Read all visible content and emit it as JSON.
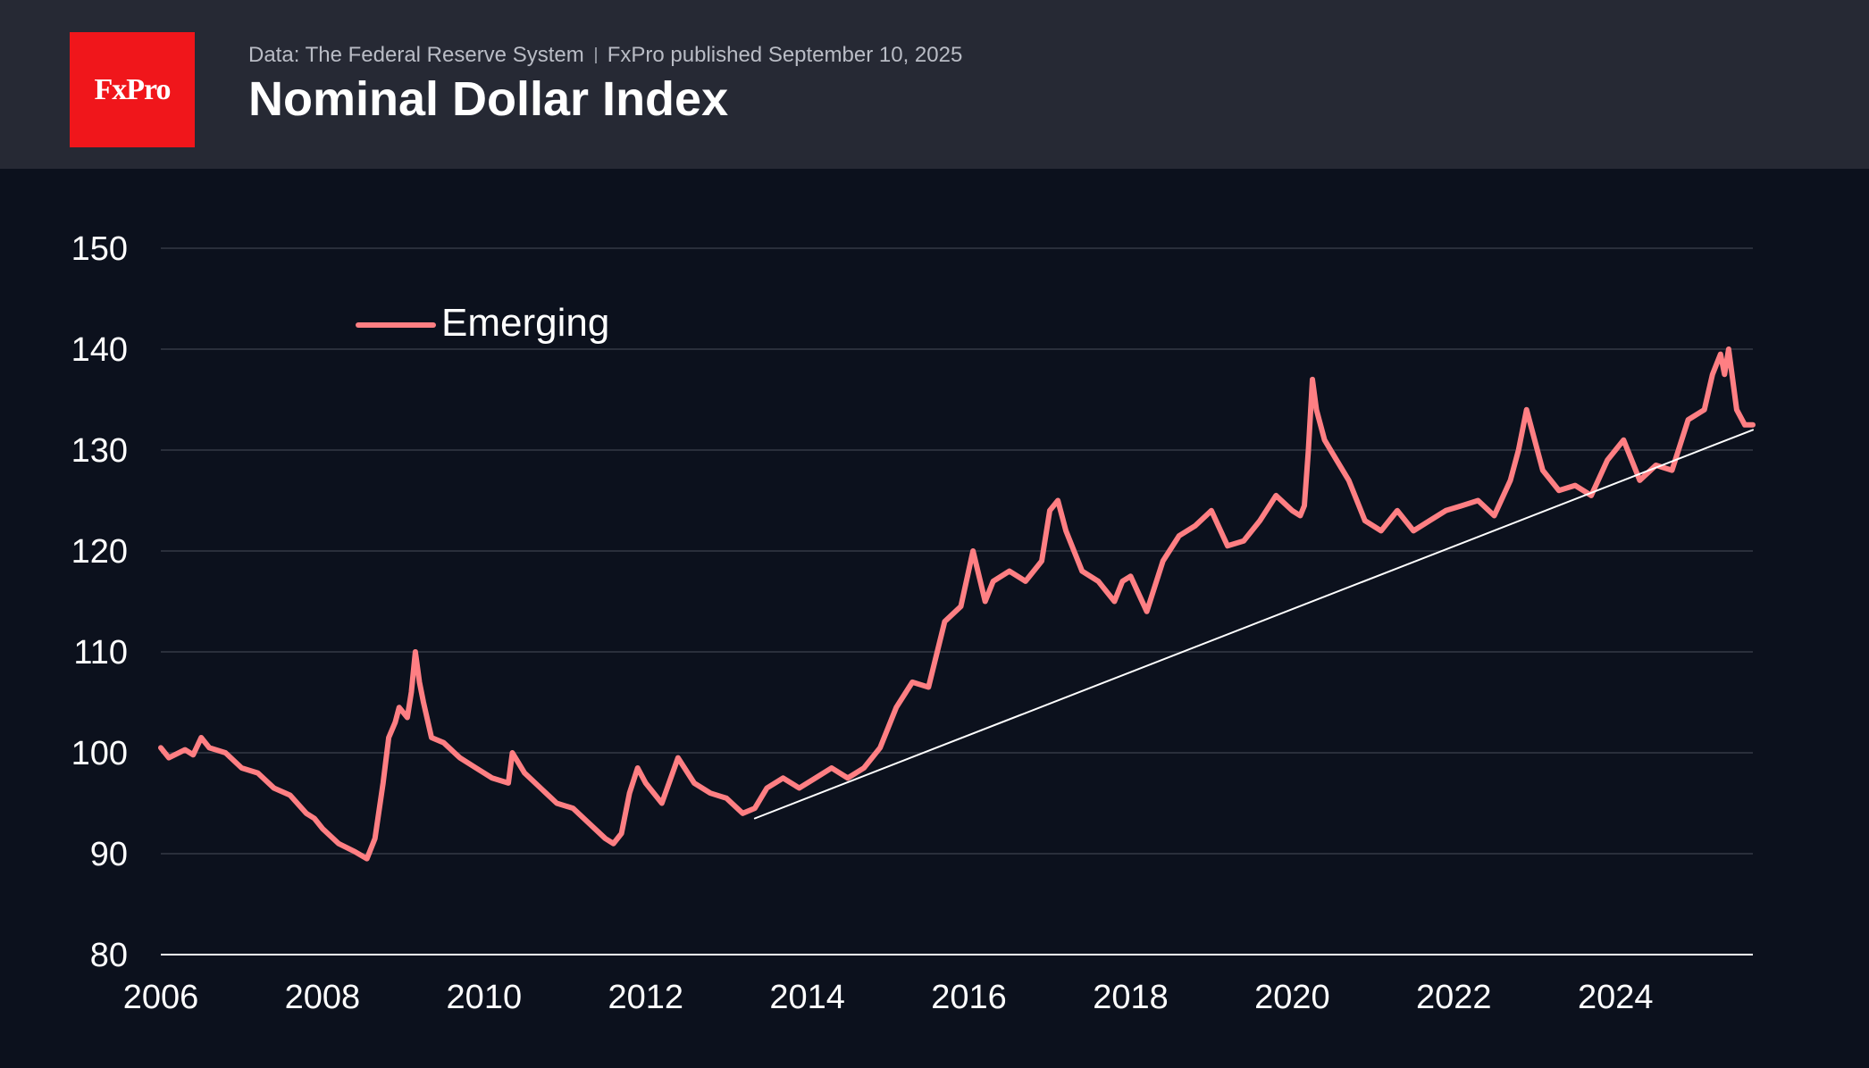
{
  "header": {
    "logo_text": "FxPro",
    "source": "Data: The Federal Reserve System",
    "publisher": "FxPro published September 10, 2025",
    "title": "Nominal Dollar Index"
  },
  "colors": {
    "header_bg": "#262934",
    "page_bg": "#0c111d",
    "logo_bg": "#f0161b",
    "series": "#ff7f83",
    "trendline": "#ffffff",
    "grid": "#2a2f3b",
    "axis_text": "#ffffff"
  },
  "chart_data": {
    "type": "line",
    "title": "Nominal Dollar Index",
    "xlabel": "",
    "ylabel": "",
    "xlim": [
      2006.0,
      2025.7
    ],
    "ylim": [
      80,
      150
    ],
    "x_ticks": [
      2006,
      2008,
      2010,
      2012,
      2014,
      2016,
      2018,
      2020,
      2022,
      2024
    ],
    "y_ticks": [
      80,
      90,
      100,
      110,
      120,
      130,
      140,
      150
    ],
    "grid": true,
    "legend": {
      "position": "top-left",
      "entries": [
        "Emerging"
      ]
    },
    "series": [
      {
        "name": "Emerging",
        "x": [
          2006.0,
          2006.1,
          2006.3,
          2006.4,
          2006.5,
          2006.6,
          2006.8,
          2007.0,
          2007.2,
          2007.4,
          2007.6,
          2007.8,
          2007.9,
          2008.0,
          2008.2,
          2008.4,
          2008.55,
          2008.65,
          2008.75,
          2008.82,
          2008.9,
          2008.95,
          2009.05,
          2009.1,
          2009.15,
          2009.2,
          2009.25,
          2009.35,
          2009.5,
          2009.7,
          2009.9,
          2010.1,
          2010.3,
          2010.35,
          2010.5,
          2010.7,
          2010.9,
          2011.1,
          2011.3,
          2011.5,
          2011.6,
          2011.7,
          2011.8,
          2011.9,
          2012.0,
          2012.2,
          2012.4,
          2012.6,
          2012.8,
          2013.0,
          2013.2,
          2013.35,
          2013.5,
          2013.7,
          2013.9,
          2014.1,
          2014.3,
          2014.5,
          2014.7,
          2014.9,
          2015.1,
          2015.3,
          2015.5,
          2015.7,
          2015.9,
          2016.05,
          2016.2,
          2016.3,
          2016.5,
          2016.7,
          2016.9,
          2017.0,
          2017.1,
          2017.2,
          2017.4,
          2017.6,
          2017.8,
          2017.9,
          2018.0,
          2018.2,
          2018.4,
          2018.6,
          2018.8,
          2019.0,
          2019.2,
          2019.4,
          2019.6,
          2019.8,
          2020.0,
          2020.1,
          2020.15,
          2020.2,
          2020.25,
          2020.3,
          2020.4,
          2020.55,
          2020.7,
          2020.9,
          2021.1,
          2021.3,
          2021.5,
          2021.7,
          2021.9,
          2022.1,
          2022.3,
          2022.5,
          2022.7,
          2022.8,
          2022.9,
          2023.1,
          2023.3,
          2023.5,
          2023.7,
          2023.9,
          2024.1,
          2024.3,
          2024.5,
          2024.7,
          2024.9,
          2025.1,
          2025.2,
          2025.3,
          2025.35,
          2025.4,
          2025.5,
          2025.6,
          2025.7
        ],
        "y": [
          100.5,
          99.5,
          100.3,
          99.8,
          101.5,
          100.5,
          100.0,
          98.5,
          98.0,
          96.5,
          95.8,
          94.0,
          93.5,
          92.5,
          91.0,
          90.2,
          89.5,
          91.5,
          97.0,
          101.5,
          103.0,
          104.5,
          103.5,
          106.0,
          110.0,
          107.0,
          105.0,
          101.5,
          101.0,
          99.5,
          98.5,
          97.5,
          97.0,
          100.0,
          98.0,
          96.5,
          95.0,
          94.5,
          93.0,
          91.5,
          91.0,
          92.0,
          96.0,
          98.5,
          97.0,
          95.0,
          99.5,
          97.0,
          96.0,
          95.5,
          94.0,
          94.5,
          96.5,
          97.5,
          96.5,
          97.5,
          98.5,
          97.5,
          98.5,
          100.5,
          104.5,
          107.0,
          106.5,
          113.0,
          114.5,
          120.0,
          115.0,
          117.0,
          118.0,
          117.0,
          119.0,
          124.0,
          125.0,
          122.0,
          118.0,
          117.0,
          115.0,
          117.0,
          117.5,
          114.0,
          119.0,
          121.5,
          122.5,
          124.0,
          120.5,
          121.0,
          123.0,
          125.5,
          124.0,
          123.5,
          124.5,
          130.0,
          137.0,
          134.0,
          131.0,
          129.0,
          127.0,
          123.0,
          122.0,
          124.0,
          122.0,
          123.0,
          124.0,
          124.5,
          125.0,
          123.5,
          127.0,
          130.0,
          134.0,
          128.0,
          126.0,
          126.5,
          125.5,
          129.0,
          131.0,
          127.0,
          128.5,
          128.0,
          133.0,
          134.0,
          137.5,
          139.5,
          137.5,
          140.0,
          134.0,
          132.5,
          132.5
        ]
      },
      {
        "name": "Trend line",
        "x": [
          2013.35,
          2025.7
        ],
        "y": [
          93.5,
          132.0
        ]
      }
    ]
  }
}
